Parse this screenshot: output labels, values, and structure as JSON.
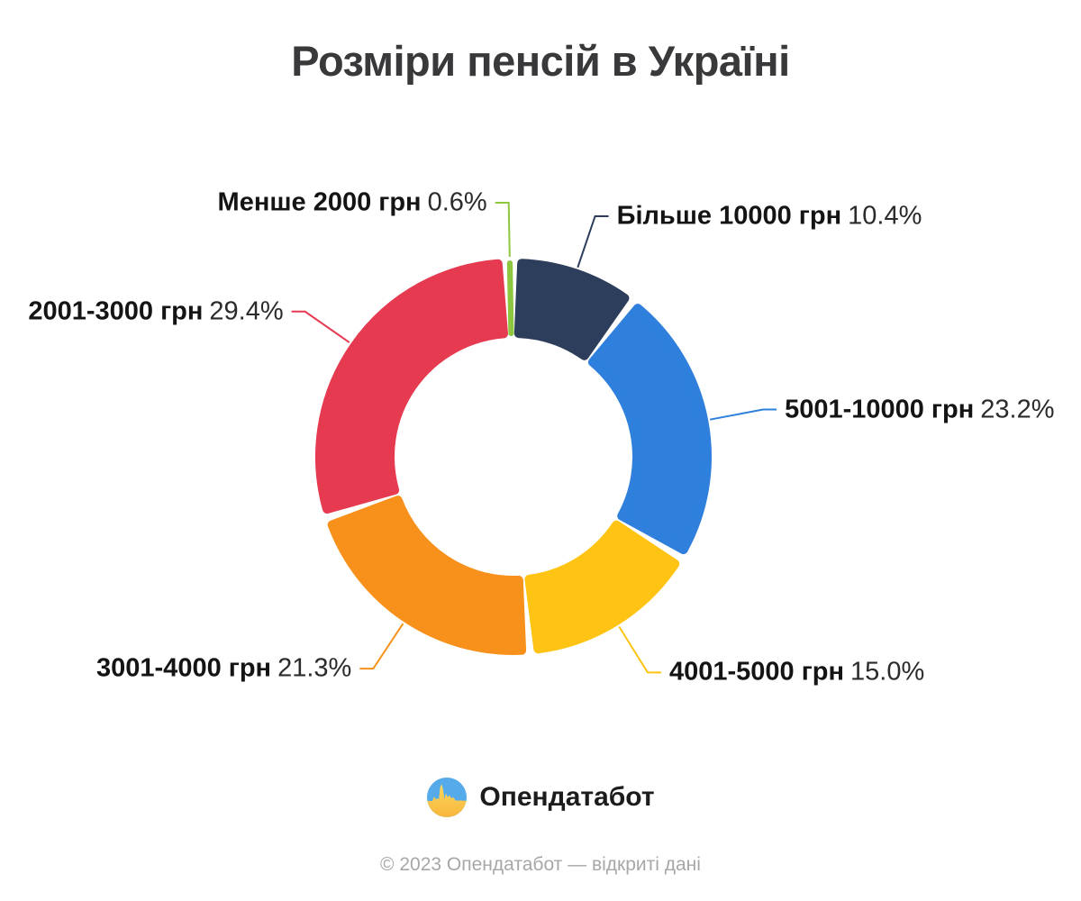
{
  "page": {
    "background": "#ffffff"
  },
  "chart_data": {
    "type": "pie",
    "subtype": "donut",
    "title": "Розміри пенсій в Україні",
    "legend_position": "none",
    "labels_style": "callout-connectors",
    "start_angle_deg": -2.162,
    "units": "грн",
    "slices": [
      {
        "label": "Менше 2000 грн",
        "value": 0.6,
        "pct_label": "0.6%",
        "color": "#8dc63f"
      },
      {
        "label": "Більше 10000 грн",
        "value": 10.4,
        "pct_label": "10.4%",
        "color": "#2d3e5c"
      },
      {
        "label": "5001-10000 грн",
        "value": 23.2,
        "pct_label": "23.2%",
        "color": "#2f80dd"
      },
      {
        "label": "4001-5000 грн",
        "value": 15.0,
        "pct_label": "15.0%",
        "color": "#fec313"
      },
      {
        "label": "3001-4000 грн",
        "value": 21.3,
        "pct_label": "21.3%",
        "color": "#f8911b"
      },
      {
        "label": "2001-3000 грн",
        "value": 29.4,
        "pct_label": "29.4%",
        "color": "#e63a50"
      }
    ]
  },
  "branding": {
    "logo_text": "Опендатабот",
    "logo_colors": {
      "blue": "#55aae9",
      "yellow_top": "#ffd95e",
      "yellow_bottom": "#f7b53c"
    },
    "footer": "© 2023 Опендатабот — відкриті дані"
  }
}
